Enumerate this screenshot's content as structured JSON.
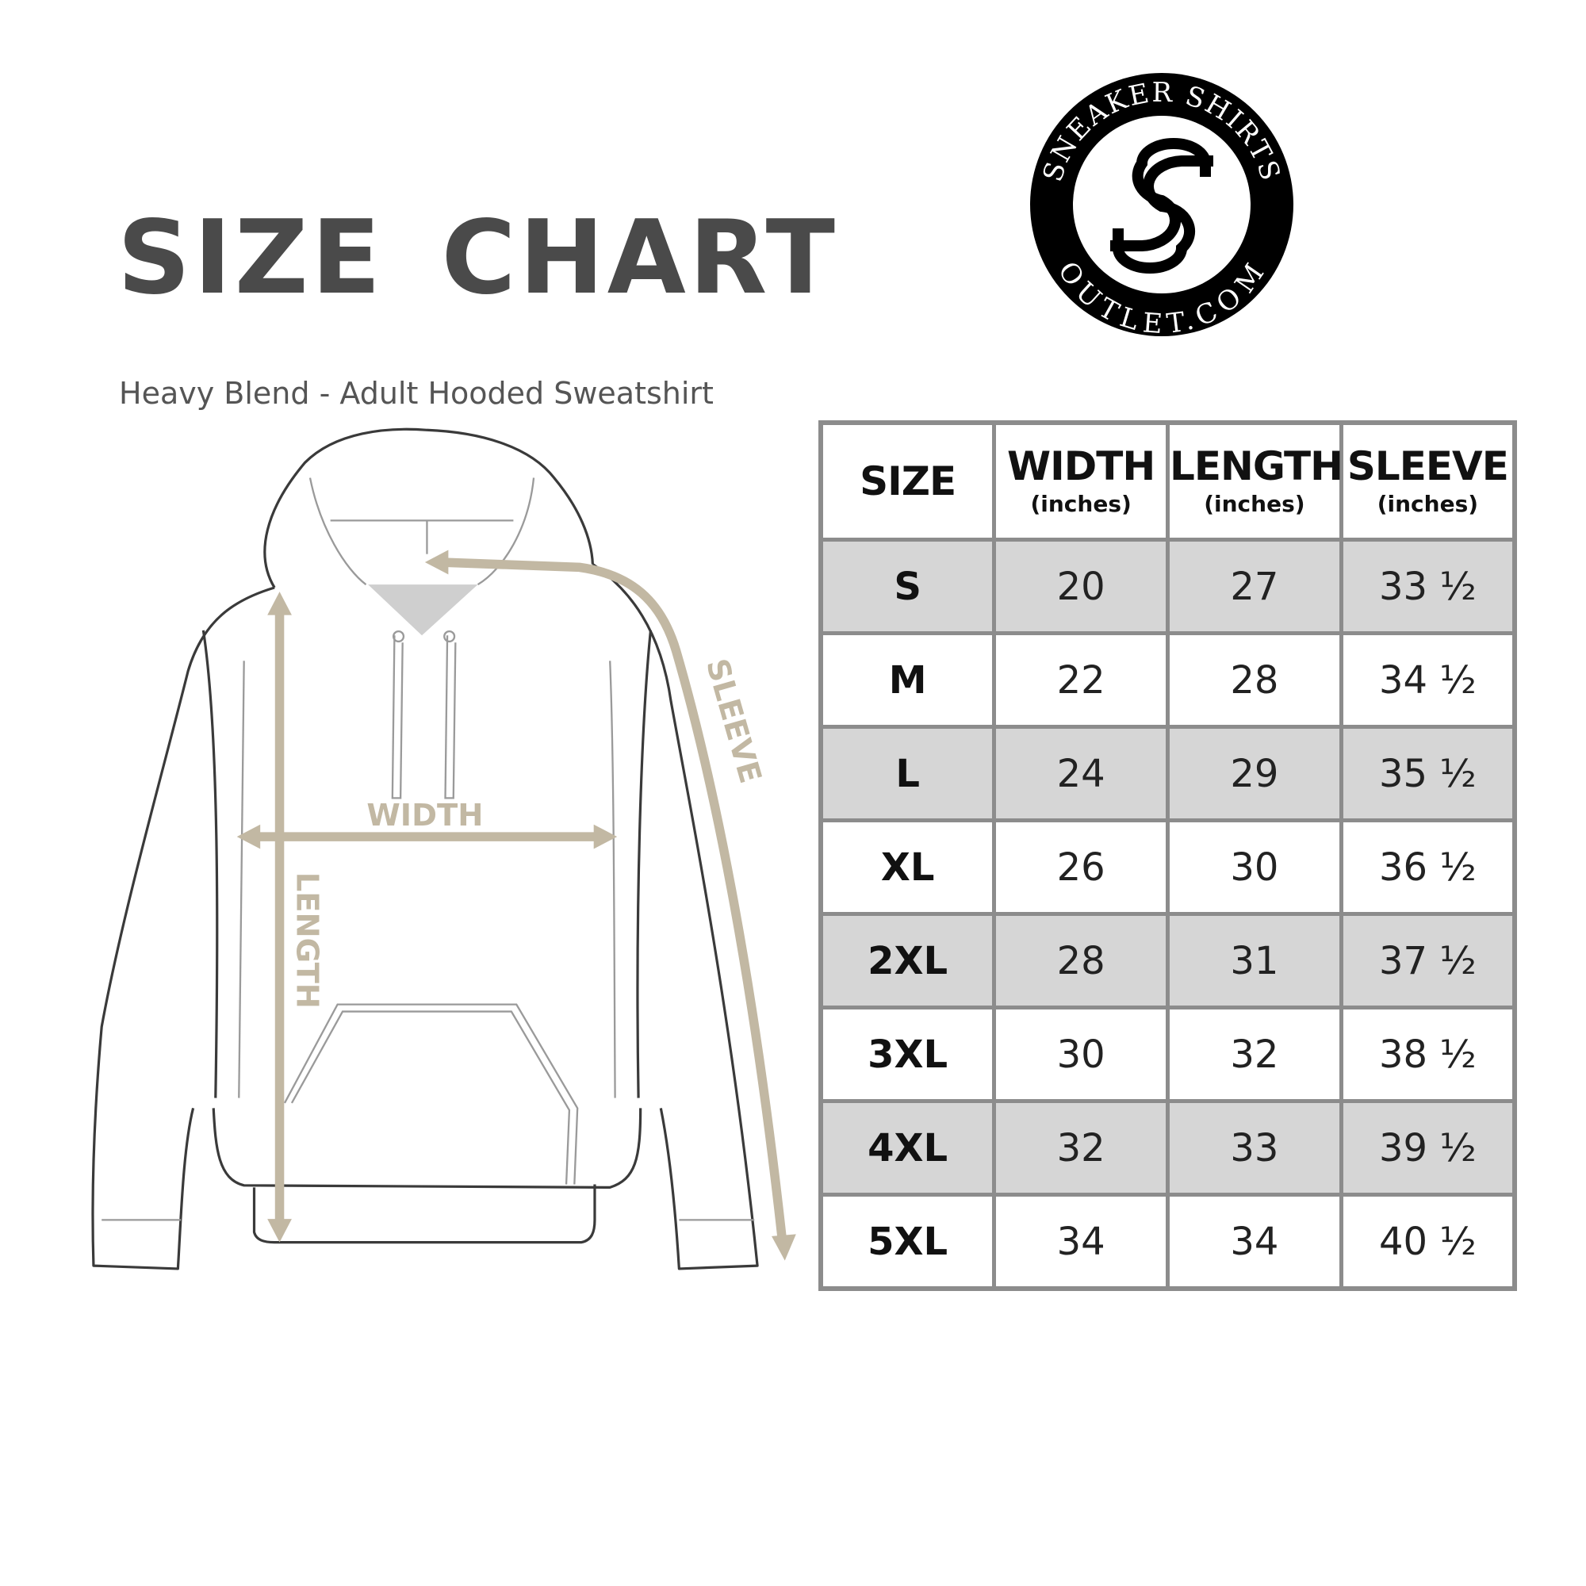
{
  "header": {
    "title": "SIZE CHART",
    "subtitle": "Heavy Blend - Adult Hooded Sweatshirt"
  },
  "logo": {
    "text_top": "SNEAKER SHIRTS",
    "text_bottom": "OUTLET.COM",
    "monogram": "SS"
  },
  "diagram": {
    "labels": {
      "width": "WIDTH",
      "length": "LENGTH",
      "sleeve": "SLEEVE"
    },
    "arrow_color": "#c2b8a3"
  },
  "table": {
    "headers": [
      {
        "label": "SIZE",
        "unit": ""
      },
      {
        "label": "WIDTH",
        "unit": "(inches)"
      },
      {
        "label": "LENGTH",
        "unit": "(inches)"
      },
      {
        "label": "SLEEVE",
        "unit": "(inches)"
      }
    ],
    "rows": [
      [
        "S",
        "20",
        "27",
        "33 ½"
      ],
      [
        "M",
        "22",
        "28",
        "34 ½"
      ],
      [
        "L",
        "24",
        "29",
        "35 ½"
      ],
      [
        "XL",
        "26",
        "30",
        "36 ½"
      ],
      [
        "2XL",
        "28",
        "31",
        "37 ½"
      ],
      [
        "3XL",
        "30",
        "32",
        "38 ½"
      ],
      [
        "4XL",
        "32",
        "33",
        "39 ½"
      ],
      [
        "5XL",
        "34",
        "34",
        "40 ½"
      ]
    ],
    "shade_color": "#d6d6d6",
    "border_color": "#8c8c8c"
  }
}
